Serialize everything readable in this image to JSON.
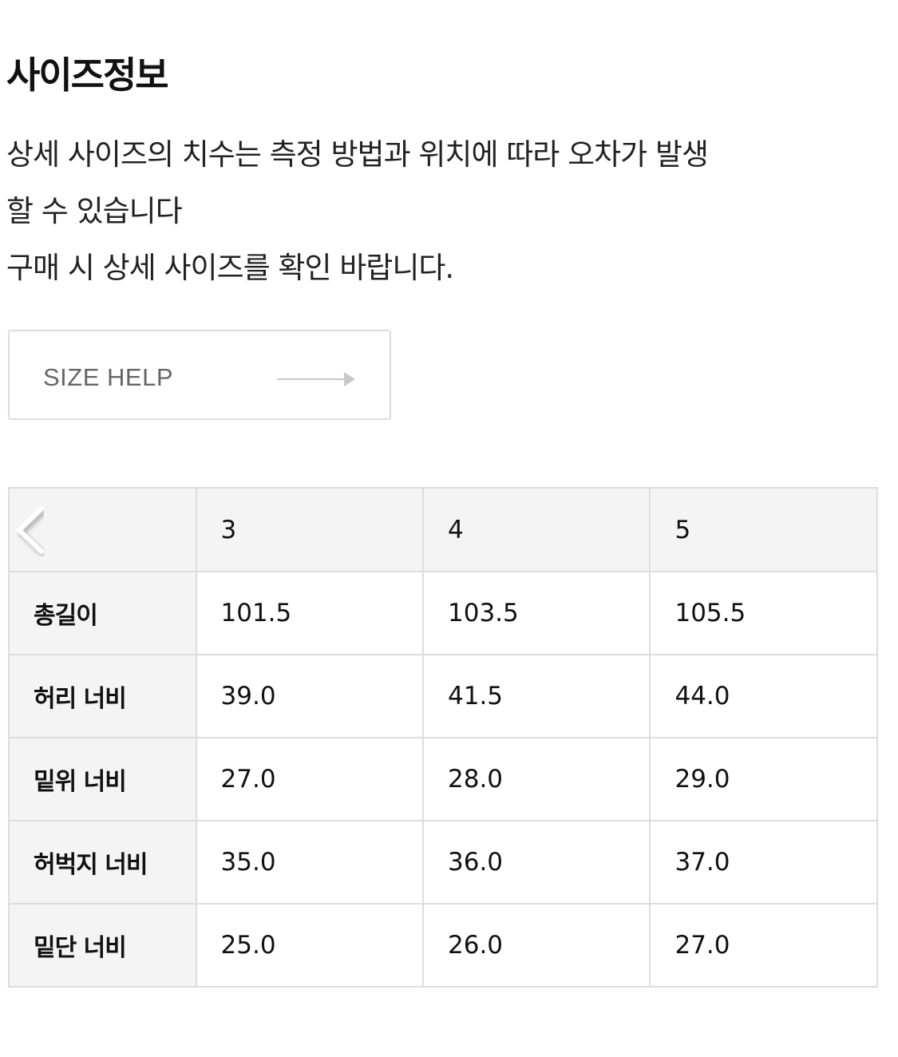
{
  "title": "사이즈정보",
  "description": [
    "상세 사이즈의 치수는 측정 방법과 위치에 따라 오차가 발생",
    "할 수 있습니다",
    "구매 시 상세 사이즈를 확인 바랍니다."
  ],
  "size_help": {
    "label": "SIZE HELP",
    "icon": "arrow-right-icon"
  },
  "table": {
    "prev_icon": "chevron-left-icon",
    "sizes": [
      "3",
      "4",
      "5"
    ],
    "rows": [
      {
        "label": "총길이",
        "values": [
          "101.5",
          "103.5",
          "105.5"
        ]
      },
      {
        "label": "허리 너비",
        "values": [
          "39.0",
          "41.5",
          "44.0"
        ]
      },
      {
        "label": "밑위 너비",
        "values": [
          "27.0",
          "28.0",
          "29.0"
        ]
      },
      {
        "label": "허벅지 너비",
        "values": [
          "35.0",
          "36.0",
          "37.0"
        ]
      },
      {
        "label": "밑단 너비",
        "values": [
          "25.0",
          "26.0",
          "27.0"
        ]
      }
    ]
  }
}
